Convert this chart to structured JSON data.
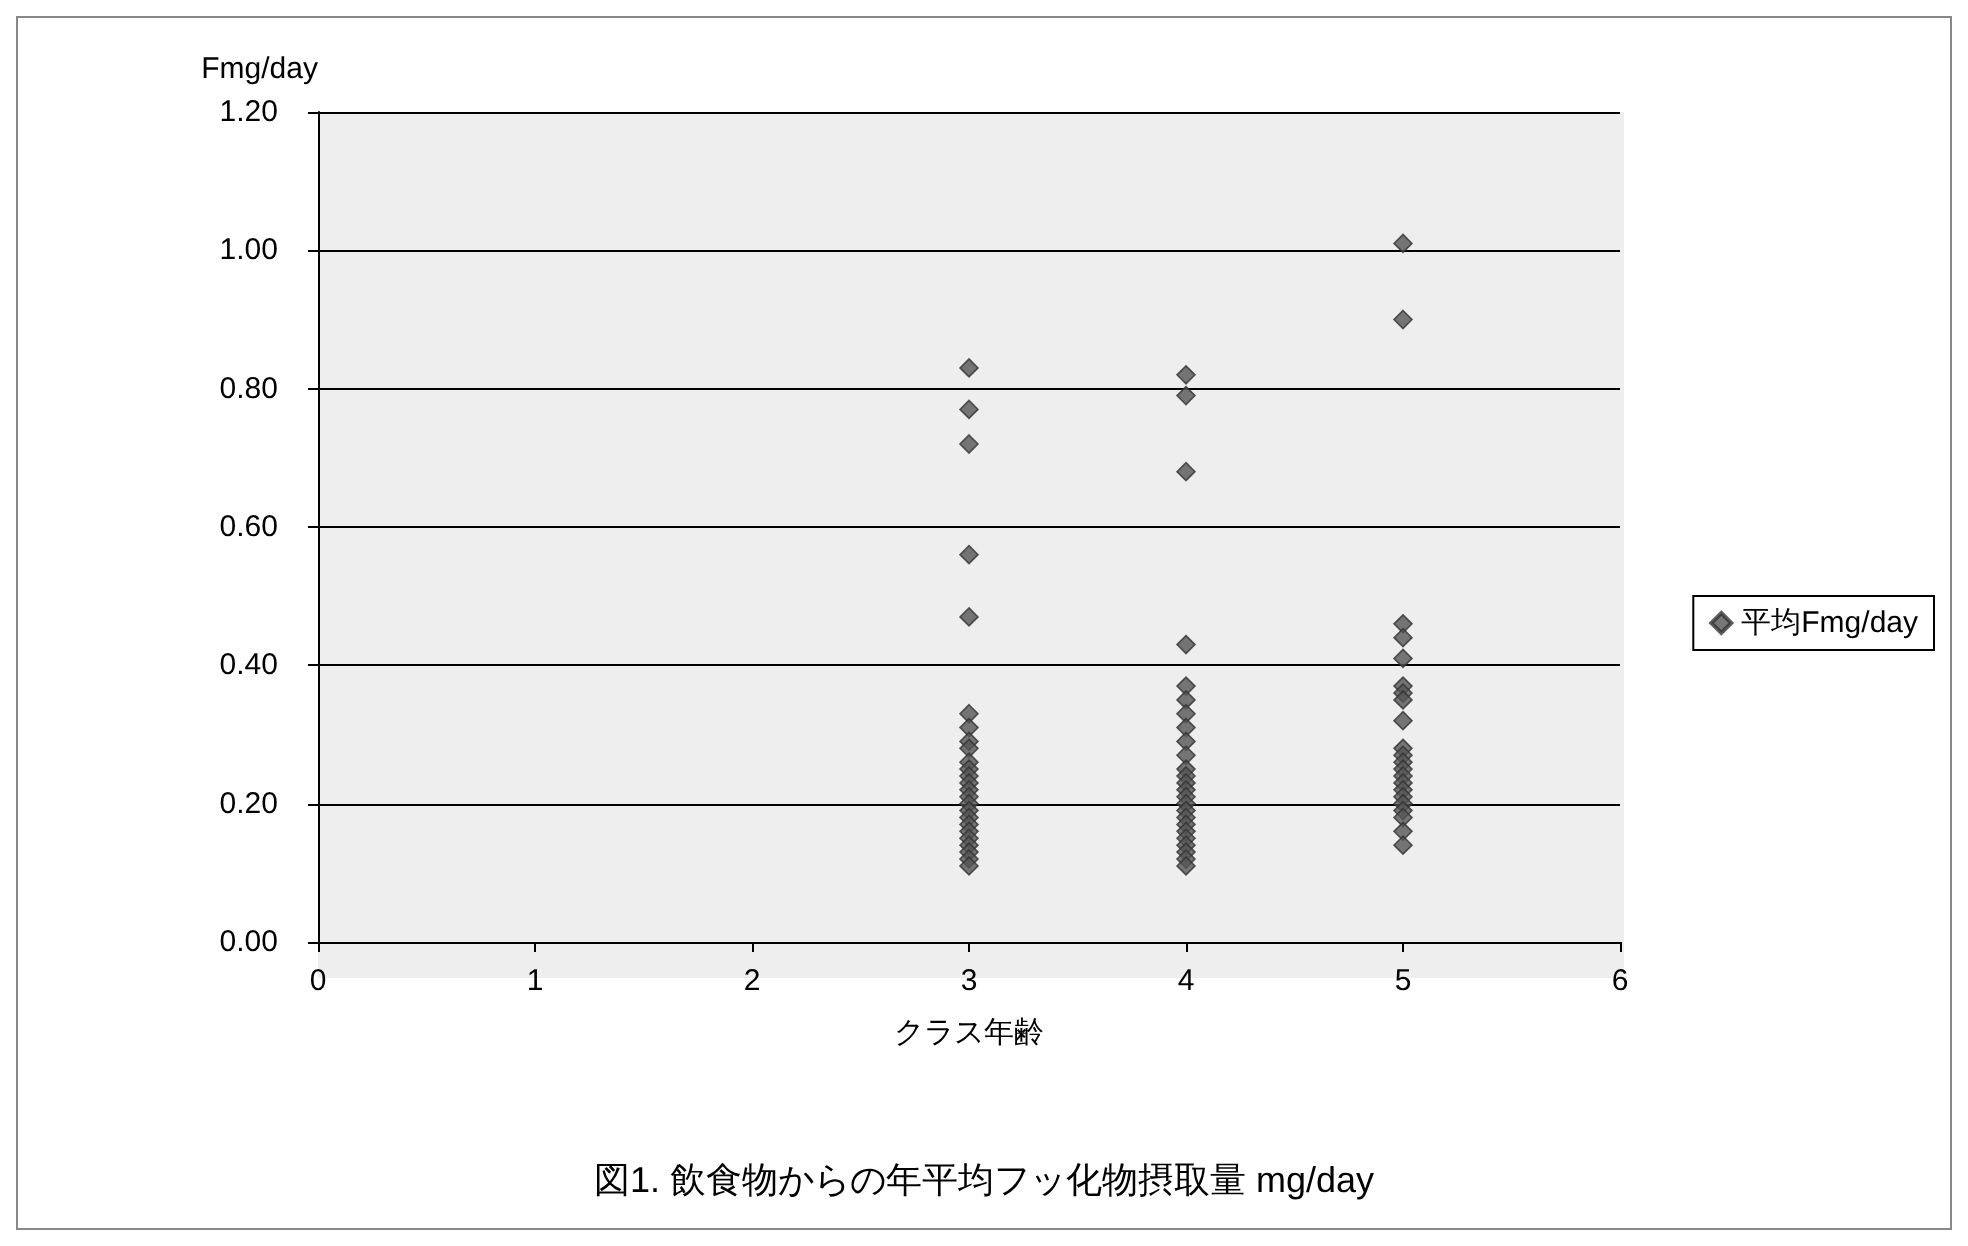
{
  "chart_data": {
    "type": "scatter",
    "title": "図1. 飲食物からの年平均フッ化物摂取量 mg/day",
    "xlabel": "クラス年齢",
    "ylabel": "Fmg/day",
    "series": [
      {
        "name": "平均Fmg/day",
        "color": "#555555",
        "x": [
          3,
          3,
          3,
          3,
          3,
          3,
          3,
          3,
          3,
          3,
          3,
          3,
          3,
          3,
          3,
          3,
          3,
          3,
          3,
          3,
          3,
          3,
          3,
          3,
          3,
          4,
          4,
          4,
          4,
          4,
          4,
          4,
          4,
          4,
          4,
          4,
          4,
          4,
          4,
          4,
          4,
          4,
          4,
          4,
          4,
          4,
          4,
          4,
          4,
          4,
          5,
          5,
          5,
          5,
          5,
          5,
          5,
          5,
          5,
          5,
          5,
          5,
          5,
          5,
          5,
          5,
          5,
          5,
          5,
          5,
          5,
          5
        ],
        "values": [
          0.83,
          0.77,
          0.72,
          0.56,
          0.47,
          0.33,
          0.31,
          0.29,
          0.28,
          0.26,
          0.25,
          0.24,
          0.23,
          0.22,
          0.21,
          0.2,
          0.19,
          0.18,
          0.17,
          0.16,
          0.15,
          0.14,
          0.13,
          0.12,
          0.11,
          0.82,
          0.79,
          0.68,
          0.43,
          0.37,
          0.35,
          0.33,
          0.31,
          0.29,
          0.27,
          0.25,
          0.24,
          0.23,
          0.22,
          0.21,
          0.2,
          0.19,
          0.18,
          0.17,
          0.16,
          0.15,
          0.14,
          0.13,
          0.12,
          0.11,
          1.01,
          0.9,
          0.46,
          0.44,
          0.41,
          0.37,
          0.36,
          0.35,
          0.32,
          0.28,
          0.27,
          0.26,
          0.25,
          0.24,
          0.23,
          0.22,
          0.21,
          0.2,
          0.19,
          0.18,
          0.16,
          0.14
        ]
      }
    ],
    "xlim": [
      0,
      6
    ],
    "xticks": [
      0,
      1,
      2,
      3,
      4,
      5,
      6
    ],
    "ylim": [
      0,
      1.2
    ],
    "yticks": [
      {
        "value": 0,
        "label": "0.00"
      },
      {
        "value": 0.2,
        "label": "0.20"
      },
      {
        "value": 0.4,
        "label": "0.40"
      },
      {
        "value": 0.6,
        "label": "0.60"
      },
      {
        "value": 0.8,
        "label": "0.80"
      },
      {
        "value": 1,
        "label": "1.00"
      },
      {
        "value": 1.2,
        "label": "1.20"
      }
    ],
    "grid": "y",
    "legend": "right",
    "marker": "diamond"
  }
}
